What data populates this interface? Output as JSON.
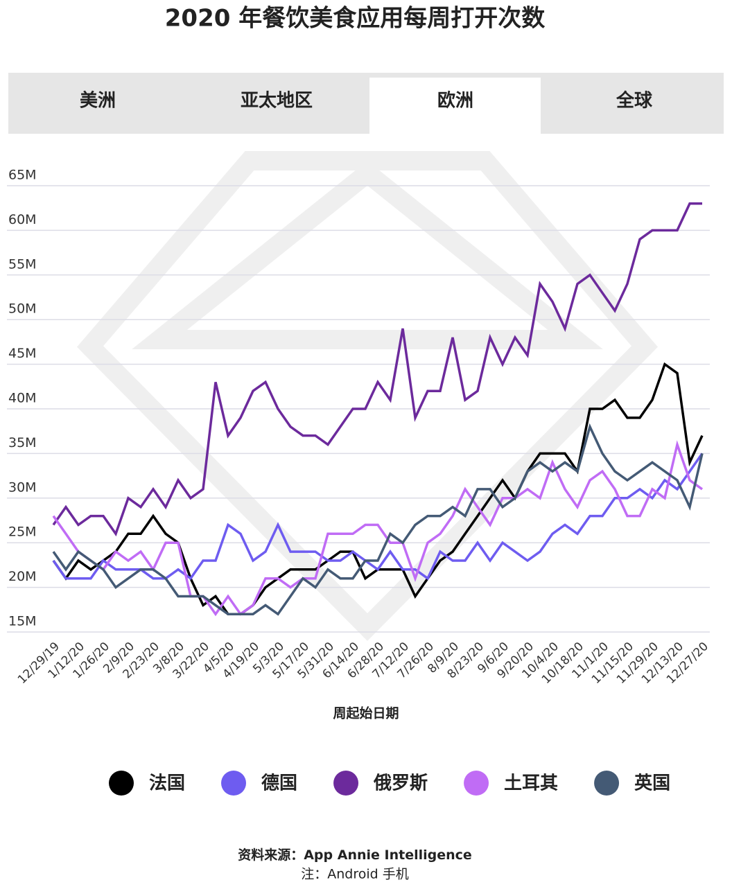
{
  "tabs": [
    "美洲",
    "亚太地区",
    "欧洲",
    "全球"
  ],
  "active_tab": 2,
  "chart_data": {
    "type": "line",
    "title": "2020 年餐饮美食应用每周打开次数",
    "x_label": "周起始日期",
    "categories": [
      "12/29/19",
      null,
      "1/12/20",
      null,
      "1/26/20",
      null,
      "2/9/20",
      null,
      "2/23/20",
      null,
      "3/8/20",
      null,
      "3/22/20",
      null,
      "4/5/20",
      null,
      "4/19/20",
      null,
      "5/3/20",
      null,
      "5/17/20",
      null,
      "5/31/20",
      null,
      "6/14/20",
      null,
      "6/28/20",
      null,
      "7/12/20",
      null,
      "7/26/20",
      null,
      "8/9/20",
      null,
      "8/23/20",
      null,
      "9/6/20",
      null,
      "9/20/20",
      null,
      "10/4/20",
      null,
      "10/18/20",
      null,
      "11/1/20",
      null,
      "11/15/20",
      null,
      "11/29/20",
      null,
      "12/13/20",
      null,
      "12/27/20"
    ],
    "ylim": [
      15,
      65
    ],
    "yticks": [
      {
        "value": 15,
        "label": "15M"
      },
      {
        "value": 20,
        "label": "20M"
      },
      {
        "value": 25,
        "label": "25M"
      },
      {
        "value": 30,
        "label": "30M"
      },
      {
        "value": 35,
        "label": "35M"
      },
      {
        "value": 40,
        "label": "40M"
      },
      {
        "value": 45,
        "label": "45M"
      },
      {
        "value": 50,
        "label": "50M"
      },
      {
        "value": 55,
        "label": "55M"
      },
      {
        "value": 60,
        "label": "60M"
      },
      {
        "value": 65,
        "label": "65M"
      }
    ],
    "grid": true,
    "legend": "bottom",
    "series": [
      {
        "name": "法国",
        "color": "#000000",
        "values": [
          23,
          21,
          23,
          22,
          23,
          24,
          26,
          26,
          28,
          26,
          25,
          21,
          18,
          19,
          17,
          17,
          18,
          20,
          21,
          22,
          22,
          22,
          23,
          24,
          24,
          21,
          22,
          22,
          22,
          19,
          21,
          23,
          24,
          26,
          28,
          30,
          32,
          30,
          33,
          35,
          35,
          35,
          33,
          40,
          40,
          41,
          39,
          39,
          41,
          45,
          44,
          34,
          37
        ]
      },
      {
        "name": "德国",
        "color": "#6e5cf0",
        "values": [
          23,
          21,
          21,
          21,
          23,
          22,
          22,
          22,
          21,
          21,
          22,
          21,
          23,
          23,
          27,
          26,
          23,
          24,
          27,
          24,
          24,
          24,
          23,
          23,
          24,
          23,
          22,
          24,
          22,
          22,
          21,
          24,
          23,
          23,
          25,
          23,
          25,
          24,
          23,
          24,
          26,
          27,
          26,
          28,
          28,
          30,
          30,
          31,
          30,
          32,
          31,
          33,
          35
        ]
      },
      {
        "name": "俄罗斯",
        "color": "#6c2a9c",
        "values": [
          27,
          29,
          27,
          28,
          28,
          26,
          30,
          29,
          31,
          29,
          32,
          30,
          31,
          43,
          37,
          39,
          42,
          43,
          40,
          38,
          37,
          37,
          36,
          38,
          40,
          40,
          43,
          41,
          49,
          39,
          42,
          42,
          48,
          41,
          42,
          48,
          45,
          48,
          46,
          54,
          52,
          49,
          54,
          55,
          53,
          51,
          54,
          59,
          60,
          60,
          60,
          63,
          63
        ]
      },
      {
        "name": "土耳其",
        "color": "#c06cf5",
        "values": [
          28,
          26,
          24,
          23,
          22,
          24,
          23,
          24,
          22,
          25,
          25,
          19,
          19,
          17,
          19,
          17,
          18,
          21,
          21,
          20,
          21,
          21,
          26,
          26,
          26,
          27,
          27,
          25,
          25,
          21,
          25,
          26,
          28,
          31,
          29,
          27,
          30,
          30,
          31,
          30,
          34,
          31,
          29,
          32,
          33,
          31,
          28,
          28,
          31,
          30,
          36,
          32,
          31
        ]
      },
      {
        "name": "英国",
        "color": "#445a75",
        "values": [
          24,
          22,
          24,
          23,
          22,
          20,
          21,
          22,
          22,
          21,
          19,
          19,
          19,
          18,
          17,
          17,
          17,
          18,
          17,
          19,
          21,
          20,
          22,
          21,
          21,
          23,
          23,
          26,
          25,
          27,
          28,
          28,
          29,
          28,
          31,
          31,
          29,
          30,
          33,
          34,
          33,
          34,
          33,
          38,
          35,
          33,
          32,
          33,
          34,
          33,
          32,
          29,
          35
        ]
      }
    ]
  },
  "footer": {
    "source_label": "资料来源：",
    "source": "App Annie Intelligence",
    "note": "注：Android 手机"
  }
}
